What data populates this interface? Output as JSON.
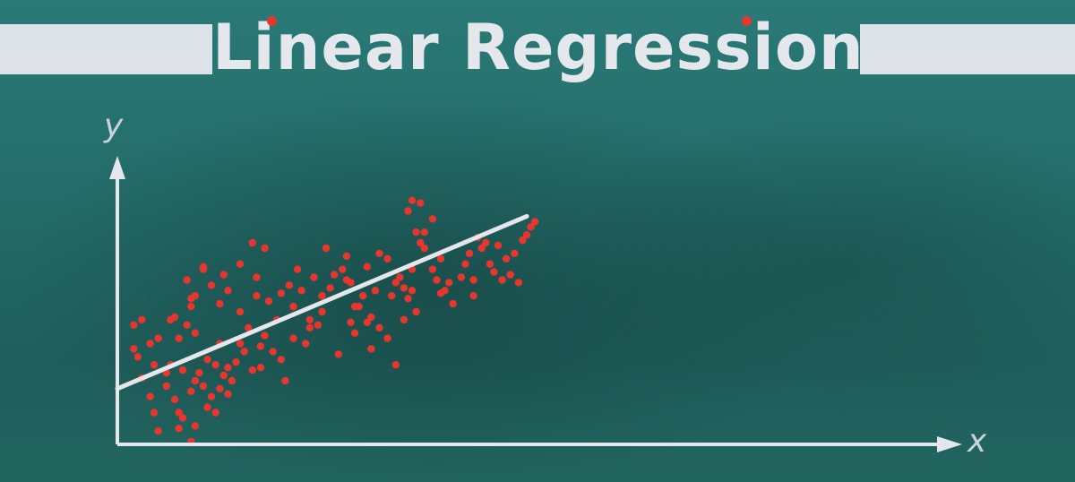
{
  "title": "Linear Regression",
  "chart_data": {
    "type": "scatter",
    "title": "Linear Regression",
    "xlabel": "x",
    "ylabel": "y",
    "xlim": [
      0,
      100
    ],
    "ylim": [
      0,
      100
    ],
    "grid": false,
    "colors": {
      "points": "#e8362e",
      "line": "#e4e8ec",
      "axes": "#e4e8ec",
      "background": "#246c69"
    },
    "regression_line": {
      "x": [
        0,
        100
      ],
      "y": [
        21,
        86
      ]
    },
    "points": [
      [
        4,
        45
      ],
      [
        4,
        36
      ],
      [
        6,
        47
      ],
      [
        5,
        33
      ],
      [
        8,
        38
      ],
      [
        10,
        40
      ],
      [
        9,
        30
      ],
      [
        14,
        48
      ],
      [
        15,
        40
      ],
      [
        13,
        47
      ],
      [
        17,
        45
      ],
      [
        19,
        42
      ],
      [
        18,
        52
      ],
      [
        19,
        56
      ],
      [
        17,
        62
      ],
      [
        21,
        66
      ],
      [
        18,
        55
      ],
      [
        23,
        60
      ],
      [
        21,
        67
      ],
      [
        25,
        53
      ],
      [
        27,
        58
      ],
      [
        26,
        64
      ],
      [
        30,
        68
      ],
      [
        30,
        50
      ],
      [
        33,
        76
      ],
      [
        34,
        63
      ],
      [
        36,
        74
      ],
      [
        37,
        54
      ],
      [
        34,
        56
      ],
      [
        32,
        44
      ],
      [
        36,
        41
      ],
      [
        35,
        29
      ],
      [
        39,
        47
      ],
      [
        40,
        57
      ],
      [
        42,
        60
      ],
      [
        43,
        52
      ],
      [
        44,
        66
      ],
      [
        45,
        58
      ],
      [
        47,
        47
      ],
      [
        48,
        63
      ],
      [
        50,
        56
      ],
      [
        50,
        50
      ],
      [
        52,
        59
      ],
      [
        51,
        74
      ],
      [
        53,
        64
      ],
      [
        55,
        66
      ],
      [
        56,
        71
      ],
      [
        56,
        62
      ],
      [
        57,
        61
      ],
      [
        59,
        52
      ],
      [
        60,
        56
      ],
      [
        61,
        67
      ],
      [
        58,
        42
      ],
      [
        62,
        48
      ],
      [
        63,
        58
      ],
      [
        64,
        72
      ],
      [
        66,
        70
      ],
      [
        68,
        61
      ],
      [
        69,
        63
      ],
      [
        70,
        59
      ],
      [
        67,
        56
      ],
      [
        71,
        55
      ],
      [
        72,
        58
      ],
      [
        73,
        50
      ],
      [
        72,
        66
      ],
      [
        73,
        80
      ],
      [
        71,
        88
      ],
      [
        72,
        92
      ],
      [
        74,
        76
      ],
      [
        77,
        85
      ],
      [
        75,
        80
      ],
      [
        74,
        91
      ],
      [
        75,
        74
      ],
      [
        77,
        66
      ],
      [
        78,
        62
      ],
      [
        79,
        70
      ],
      [
        80,
        58
      ],
      [
        81,
        61
      ],
      [
        82,
        53
      ],
      [
        79,
        57
      ],
      [
        84,
        63
      ],
      [
        85,
        68
      ],
      [
        86,
        72
      ],
      [
        87,
        62
      ],
      [
        87,
        56
      ],
      [
        88,
        78
      ],
      [
        89,
        74
      ],
      [
        90,
        76
      ],
      [
        91,
        68
      ],
      [
        92,
        65
      ],
      [
        93,
        75
      ],
      [
        94,
        62
      ],
      [
        95,
        70
      ],
      [
        96,
        64
      ],
      [
        97,
        72
      ],
      [
        98,
        61
      ],
      [
        99,
        77
      ],
      [
        100,
        79
      ],
      [
        101,
        82
      ],
      [
        102,
        84
      ],
      [
        6,
        25
      ],
      [
        8,
        18
      ],
      [
        9,
        12
      ],
      [
        12,
        27
      ],
      [
        12,
        22
      ],
      [
        14,
        17
      ],
      [
        15,
        12
      ],
      [
        16,
        10
      ],
      [
        18,
        20
      ],
      [
        19,
        24
      ],
      [
        20,
        27
      ],
      [
        21,
        22
      ],
      [
        22,
        14
      ],
      [
        23,
        18
      ],
      [
        24,
        12
      ],
      [
        25,
        21
      ],
      [
        26,
        26
      ],
      [
        27,
        29
      ],
      [
        28,
        24
      ],
      [
        29,
        31
      ],
      [
        13,
        30
      ],
      [
        16,
        28
      ],
      [
        24,
        30
      ],
      [
        10,
        5
      ],
      [
        15,
        6
      ],
      [
        18,
        1
      ],
      [
        19,
        7
      ],
      [
        22,
        32
      ],
      [
        27,
        19
      ],
      [
        31,
        35
      ],
      [
        33,
        28
      ],
      [
        35,
        37
      ],
      [
        38,
        35
      ],
      [
        40,
        32
      ],
      [
        41,
        24
      ],
      [
        43,
        40
      ],
      [
        46,
        38
      ],
      [
        49,
        45
      ],
      [
        54,
        34
      ],
      [
        57,
        46
      ],
      [
        64,
        44
      ],
      [
        68,
        30
      ],
      [
        70,
        47
      ],
      [
        66,
        40
      ],
      [
        61,
        46
      ],
      [
        30,
        38
      ],
      [
        25,
        38
      ],
      [
        47,
        44
      ],
      [
        62,
        36
      ],
      [
        58,
        52
      ]
    ]
  }
}
